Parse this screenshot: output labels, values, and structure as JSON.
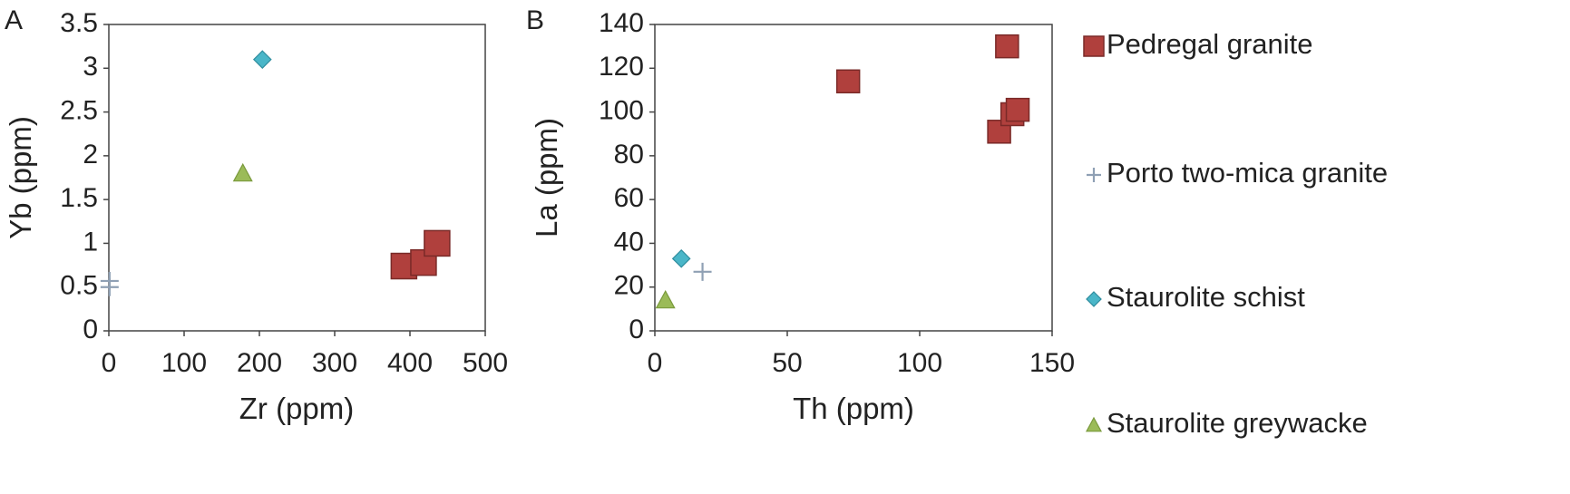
{
  "colors": {
    "pedregal": "#b0403d",
    "pedregal_stroke": "#7a2a28",
    "porto": "#8fa0b4",
    "schist": "#4ab6c8",
    "schist_stroke": "#2f8d9e",
    "greywacke": "#9bbb58",
    "greywacke_stroke": "#7a9a3c"
  },
  "chart_data": [
    {
      "type": "scatter",
      "panel_label": "A",
      "xlabel": "Zr (ppm)",
      "ylabel": "Yb (ppm)",
      "xlim": [
        0,
        500
      ],
      "ylim": [
        0,
        3.5
      ],
      "xticks": [
        0,
        100,
        200,
        300,
        400,
        500
      ],
      "yticks": [
        0,
        0.5,
        1,
        1.5,
        2,
        2.5,
        3,
        3.5
      ],
      "grid": false,
      "series": [
        {
          "name": "Pedregal granite",
          "marker": "square",
          "points": [
            [
              392,
              0.74
            ],
            [
              418,
              0.78
            ],
            [
              436,
              1.0
            ]
          ]
        },
        {
          "name": "Porto two-mica granite",
          "marker": "plus",
          "points": [
            [
              1,
              0.57
            ],
            [
              1,
              0.5
            ]
          ]
        },
        {
          "name": "Staurolite schist",
          "marker": "diamond",
          "points": [
            [
              204,
              3.1
            ]
          ]
        },
        {
          "name": "Staurolite greywacke",
          "marker": "triangle",
          "points": [
            [
              178,
              1.8
            ]
          ]
        }
      ]
    },
    {
      "type": "scatter",
      "panel_label": "B",
      "xlabel": "Th (ppm)",
      "ylabel": "La (ppm)",
      "xlim": [
        0,
        150
      ],
      "ylim": [
        0,
        140
      ],
      "xticks": [
        0,
        50,
        100,
        150
      ],
      "yticks": [
        0,
        20,
        40,
        60,
        80,
        100,
        120,
        140
      ],
      "grid": false,
      "series": [
        {
          "name": "Pedregal granite",
          "marker": "square",
          "points": [
            [
              73,
              114
            ],
            [
              133,
              130
            ],
            [
              130,
              91
            ],
            [
              135,
              99
            ],
            [
              137,
              101
            ]
          ]
        },
        {
          "name": "Porto two-mica granite",
          "marker": "plus",
          "points": [
            [
              18,
              27
            ]
          ]
        },
        {
          "name": "Staurolite schist",
          "marker": "diamond",
          "points": [
            [
              10,
              33
            ]
          ]
        },
        {
          "name": "Staurolite greywacke",
          "marker": "triangle",
          "points": [
            [
              4,
              14
            ]
          ]
        }
      ]
    }
  ],
  "legend": {
    "placement": "right",
    "items": [
      {
        "label": "Pedregal granite",
        "marker": "square"
      },
      {
        "label": "Porto two-mica granite",
        "marker": "plus"
      },
      {
        "label": "Staurolite schist",
        "marker": "diamond"
      },
      {
        "label": "Staurolite greywacke",
        "marker": "triangle"
      }
    ]
  }
}
